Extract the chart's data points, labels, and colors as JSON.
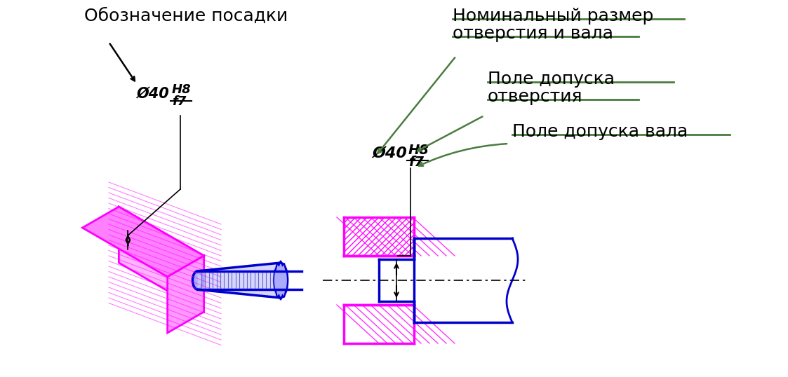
{
  "bg_color": "#ffffff",
  "title_text": "Обозначение посадки",
  "label_nominal": "Номинальный размер",
  "label_nominal2": "отверстия и вала",
  "label_hole": "Поле допуска",
  "label_hole2": "отверстия",
  "label_shaft": "Поле допуска вала",
  "designation_text": "Ø40",
  "h8_text": "H8",
  "f7_text": "f7",
  "green_color": "#4a7c3f",
  "blue_color": "#0000cc",
  "magenta_color": "#ff00ff",
  "black_color": "#000000",
  "hatch_color": "#ff00ff",
  "label_fontsize": 18,
  "title_fontsize": 18
}
